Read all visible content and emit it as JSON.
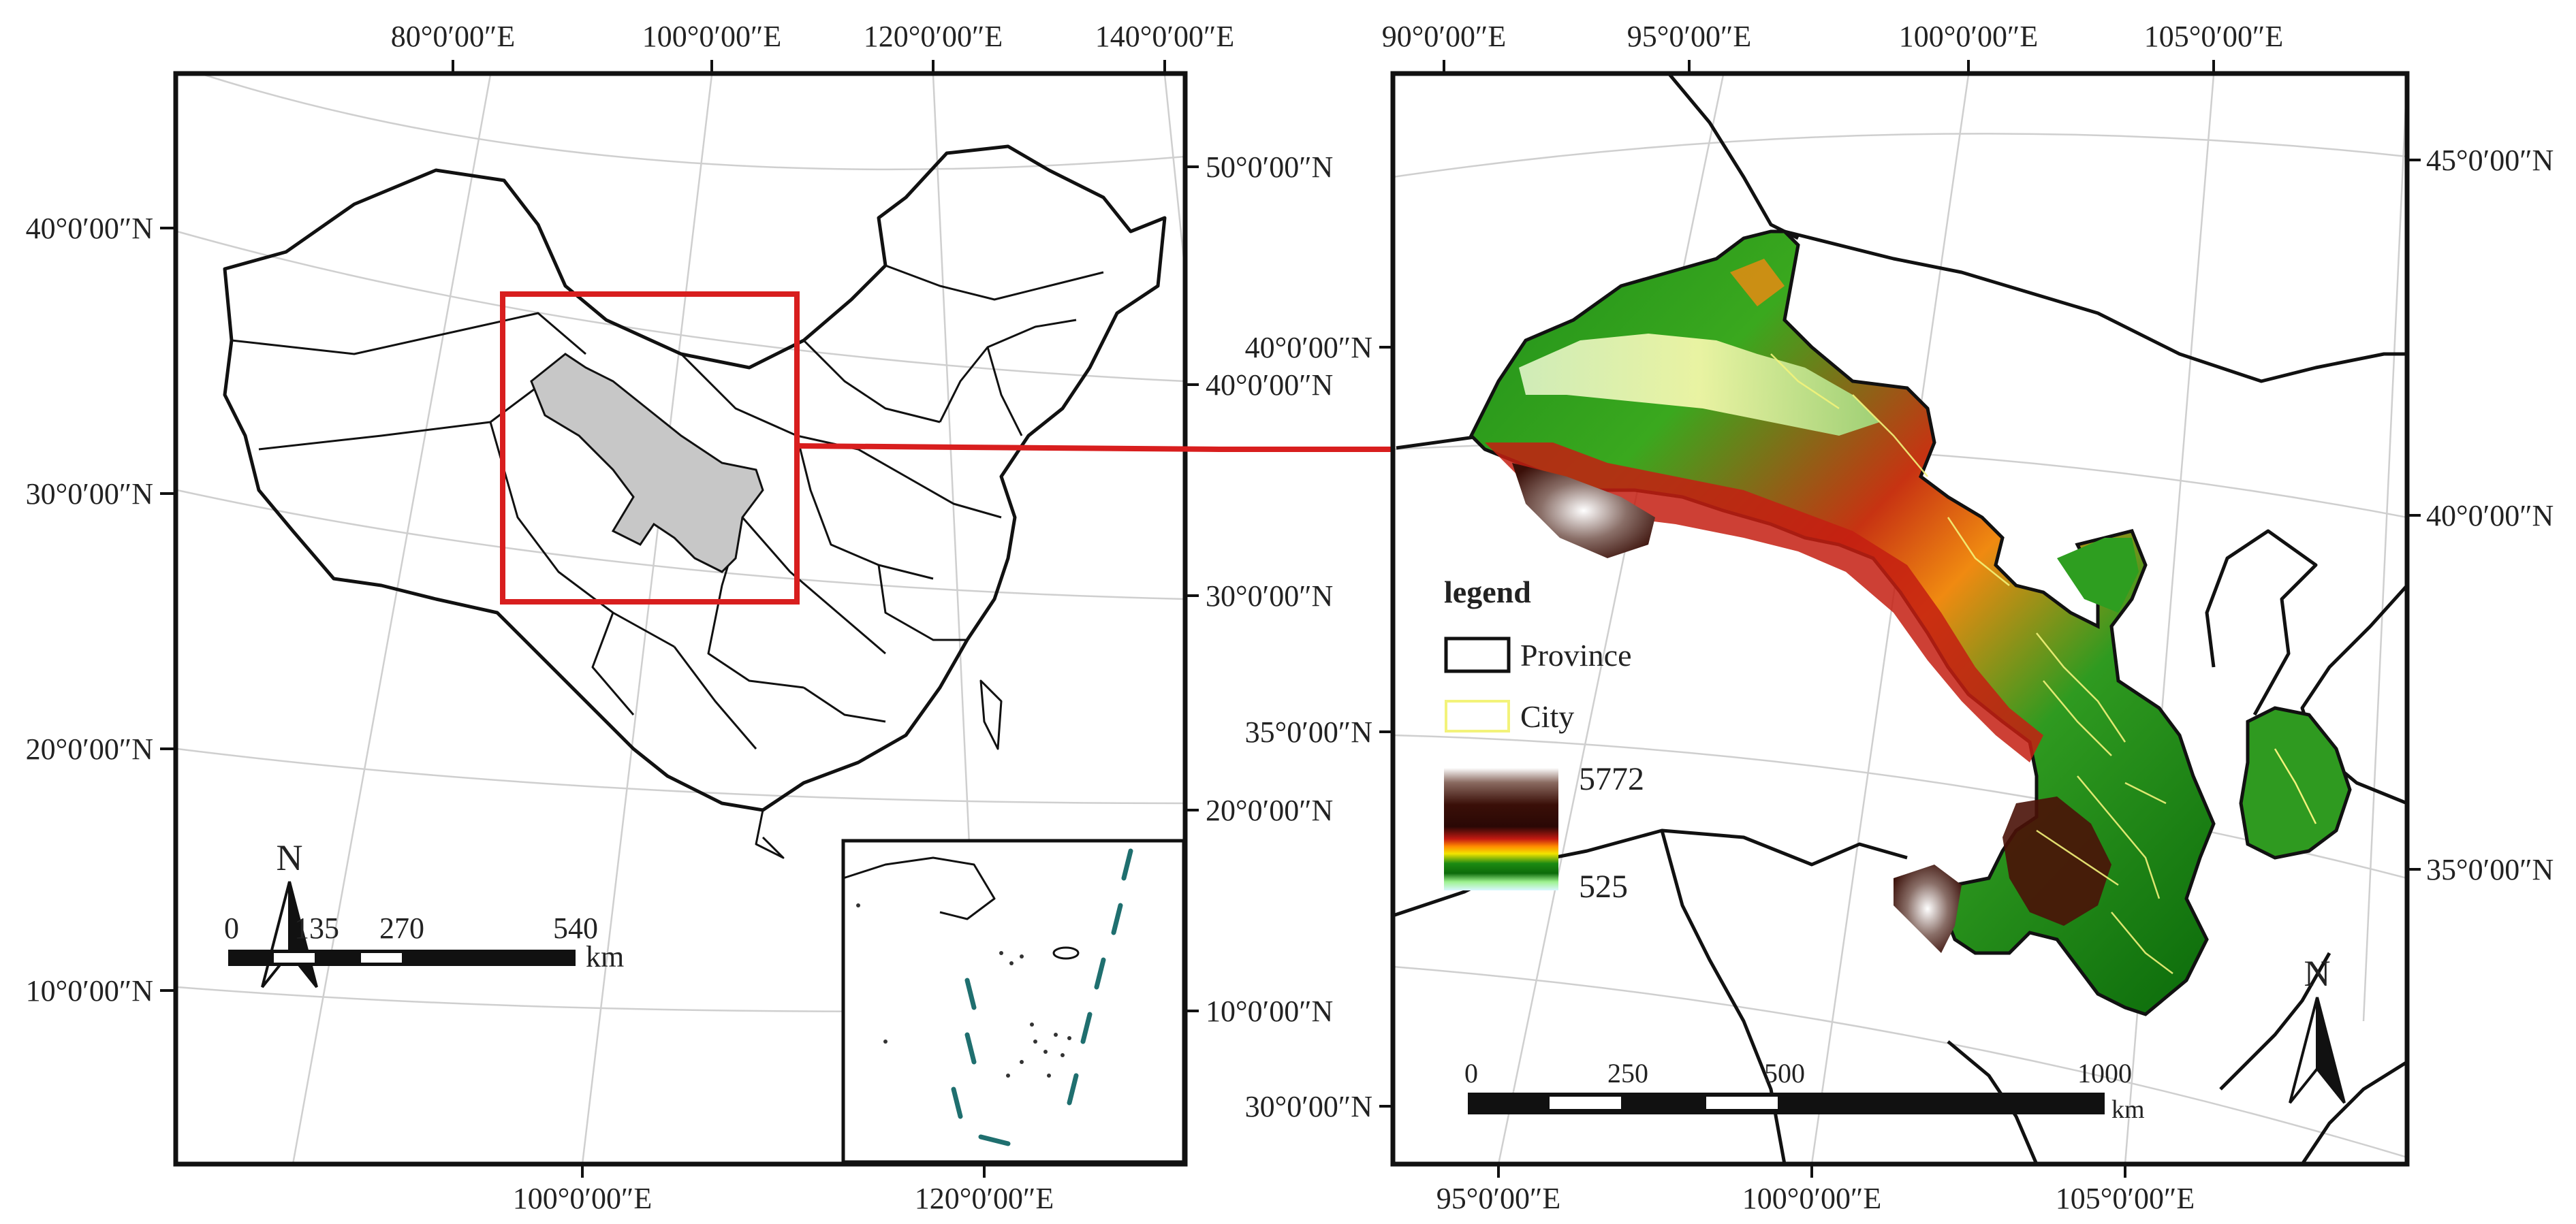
{
  "left_map": {
    "top_lon_labels": [
      "80°0′00″E",
      "100°0′00″E",
      "120°0′00″E",
      "140°0′00″E"
    ],
    "bottom_lon_labels": [
      "100°0′00″E",
      "120°0′00″E"
    ],
    "left_lat_labels": [
      "40°0′00″N",
      "30°0′00″N",
      "20°0′00″N",
      "10°0′00″N"
    ],
    "right_lat_labels": [
      "50°0′00″N",
      "40°0′00″N",
      "30°0′00″N",
      "20°0′00″N",
      "10°0′00″N"
    ],
    "north_label": "N",
    "scale_numbers": [
      "0",
      "135",
      "270",
      "540"
    ],
    "scale_unit": "km"
  },
  "right_map": {
    "top_lon_labels": [
      "90°0′00″E",
      "95°0′00″E",
      "100°0′00″E",
      "105°0′00″E"
    ],
    "bottom_lon_labels": [
      "95°0′00″E",
      "100°0′00″E",
      "105°0′00″E"
    ],
    "left_lat_labels": [
      "40°0′00″N",
      "35°0′00″N",
      "30°0′00″N"
    ],
    "right_lat_labels": [
      "45°0′00″N",
      "40°0′00″N",
      "35°0′00″N"
    ],
    "north_label": "N",
    "scale_numbers": [
      "0",
      "250",
      "500",
      "1000"
    ],
    "scale_unit": "km"
  },
  "legend": {
    "title": "legend",
    "province_label": "Province",
    "city_label": "City",
    "elevation_max": "5772",
    "elevation_min": "525"
  },
  "colors": {
    "highlight_box": "#d81e1e",
    "study_area_fill": "#c7c7c7",
    "province_line": "#111111",
    "city_line": "#f3f37a",
    "sea_boundary": "#1f6f6f"
  }
}
